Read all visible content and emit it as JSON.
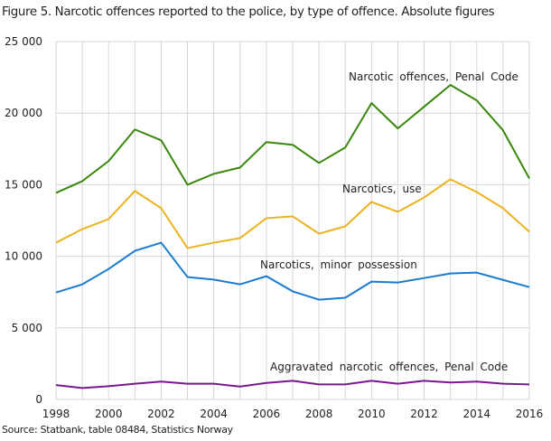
{
  "chart_data": {
    "type": "line",
    "title": "Figure 5. Narcotic offences reported to the police, by type of offence. Absolute figures",
    "source": "Source: Statbank, table 08484, Statistics Norway",
    "x": [
      1998,
      1999,
      2000,
      2001,
      2002,
      2003,
      2004,
      2005,
      2006,
      2007,
      2008,
      2009,
      2010,
      2011,
      2012,
      2013,
      2014,
      2015,
      2016
    ],
    "xticks": [
      "1998",
      "2000",
      "2002",
      "2004",
      "2006",
      "2008",
      "2010",
      "2012",
      "2014",
      "2016"
    ],
    "yticks": [
      "0",
      "5 000",
      "10 000",
      "15 000",
      "20 000",
      "25 000"
    ],
    "ylim": [
      0,
      25000
    ],
    "grid": true,
    "series": [
      {
        "name": "Narcotic offences, Penal Code",
        "color": "#3a870e",
        "values": [
          14430,
          15250,
          16650,
          18860,
          18100,
          15000,
          15760,
          16200,
          17980,
          17790,
          16520,
          17600,
          20700,
          18930,
          20450,
          21970,
          20890,
          18800,
          15440
        ]
      },
      {
        "name": "Narcotics, use",
        "color": "#ecb320",
        "values": [
          10950,
          11900,
          12600,
          14560,
          13360,
          10570,
          10950,
          11270,
          12660,
          12790,
          11580,
          12090,
          13800,
          13100,
          14110,
          15380,
          14490,
          13360,
          11710
        ]
      },
      {
        "name": "Narcotics, minor possession",
        "color": "#1a7bd0",
        "values": [
          7470,
          8040,
          9110,
          10380,
          10950,
          8550,
          8370,
          8040,
          8610,
          7550,
          6970,
          7100,
          8230,
          8170,
          8480,
          8800,
          8860,
          8350,
          7850
        ]
      },
      {
        "name": "Aggravated narcotic offences, Penal Code",
        "color": "#7b1890",
        "values": [
          1000,
          800,
          920,
          1100,
          1250,
          1100,
          1100,
          900,
          1150,
          1300,
          1050,
          1050,
          1300,
          1100,
          1300,
          1180,
          1250,
          1100,
          1050
        ]
      }
    ]
  }
}
